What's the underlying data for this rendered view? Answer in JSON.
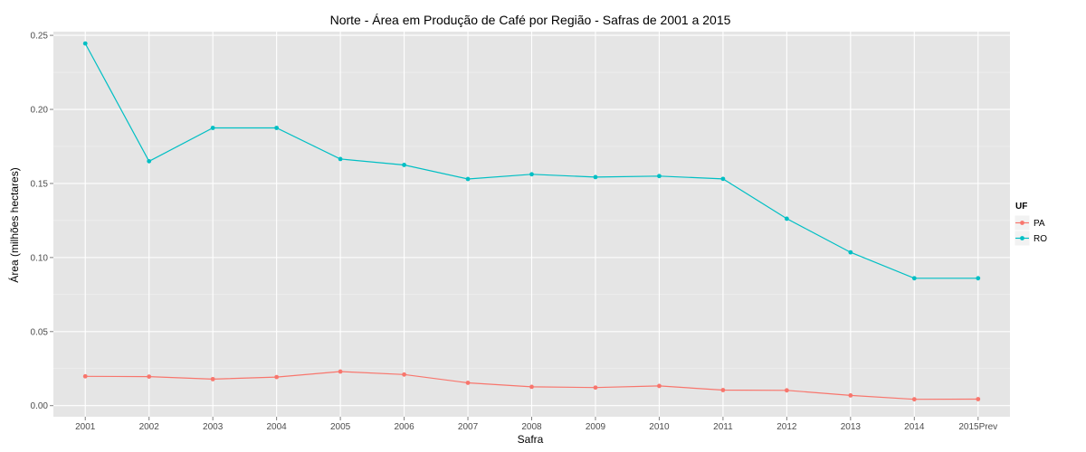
{
  "chart_data": {
    "type": "line",
    "title": "Norte  - Área em Produção de Café por Região - Safras de 2001 a 2015",
    "xlabel": "Safra",
    "ylabel": "Área (milhões hectares)",
    "categories": [
      "2001",
      "2002",
      "2003",
      "2004",
      "2005",
      "2006",
      "2007",
      "2008",
      "2009",
      "2010",
      "2011",
      "2012",
      "2013",
      "2014",
      "2015Prev"
    ],
    "ylim": [
      -0.0075,
      0.2525
    ],
    "yticks": [
      "0.00",
      "0.05",
      "0.10",
      "0.15",
      "0.20",
      "0.25"
    ],
    "ytick_values": [
      0,
      0.05,
      0.1,
      0.15,
      0.2,
      0.25
    ],
    "grid": true,
    "legend_title": "UF",
    "legend_position": "right",
    "series": [
      {
        "name": "PA",
        "color": "#F8766D",
        "values": [
          0.0198,
          0.0196,
          0.0179,
          0.0193,
          0.023,
          0.021,
          0.0154,
          0.0127,
          0.0122,
          0.0133,
          0.0105,
          0.0103,
          0.0069,
          0.0043,
          0.0044
        ]
      },
      {
        "name": "RO",
        "color": "#00BFC4",
        "values": [
          0.2445,
          0.165,
          0.1875,
          0.1875,
          0.1665,
          0.1625,
          0.153,
          0.1562,
          0.1543,
          0.155,
          0.1531,
          0.1262,
          0.1035,
          0.086,
          0.086
        ]
      }
    ]
  }
}
